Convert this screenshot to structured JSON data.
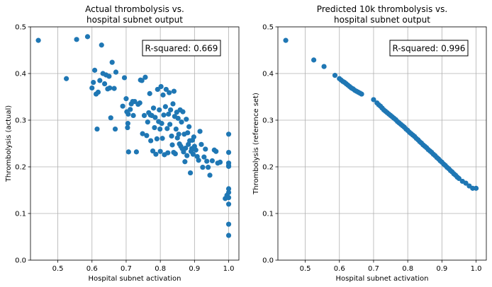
{
  "chart_data": [
    {
      "type": "scatter",
      "title_lines": [
        "Actual thrombolysis vs.",
        "hospital subnet output"
      ],
      "xlabel": "Hospital subnet activation",
      "ylabel": "Thrombolysis (actual)",
      "xlim": [
        0.42,
        1.03
      ],
      "ylim": [
        0.0,
        0.5
      ],
      "xticks": [
        "0.5",
        "0.6",
        "0.7",
        "0.8",
        "0.9",
        "1.0"
      ],
      "yticks": [
        "0.0",
        "0.1",
        "0.2",
        "0.3",
        "0.4",
        "0.5"
      ],
      "grid": true,
      "annotation": "R-squared: 0.669",
      "marker_color": "#1f77b4",
      "points": [
        [
          0.443,
          0.471
        ],
        [
          0.525,
          0.389
        ],
        [
          0.555,
          0.473
        ],
        [
          0.587,
          0.479
        ],
        [
          0.6,
          0.369
        ],
        [
          0.604,
          0.381
        ],
        [
          0.608,
          0.407
        ],
        [
          0.612,
          0.356
        ],
        [
          0.615,
          0.281
        ],
        [
          0.618,
          0.36
        ],
        [
          0.623,
          0.385
        ],
        [
          0.628,
          0.461
        ],
        [
          0.632,
          0.4
        ],
        [
          0.637,
          0.378
        ],
        [
          0.641,
          0.397
        ],
        [
          0.646,
          0.367
        ],
        [
          0.65,
          0.394
        ],
        [
          0.652,
          0.369
        ],
        [
          0.655,
          0.305
        ],
        [
          0.659,
          0.424
        ],
        [
          0.665,
          0.368
        ],
        [
          0.668,
          0.281
        ],
        [
          0.67,
          0.403
        ],
        [
          0.69,
          0.33
        ],
        [
          0.695,
          0.391
        ],
        [
          0.7,
          0.346
        ],
        [
          0.702,
          0.318
        ],
        [
          0.704,
          0.284
        ],
        [
          0.705,
          0.293
        ],
        [
          0.706,
          0.313
        ],
        [
          0.707,
          0.232
        ],
        [
          0.712,
          0.323
        ],
        [
          0.715,
          0.335
        ],
        [
          0.719,
          0.34
        ],
        [
          0.721,
          0.31
        ],
        [
          0.725,
          0.34
        ],
        [
          0.73,
          0.232
        ],
        [
          0.735,
          0.334
        ],
        [
          0.74,
          0.337
        ],
        [
          0.742,
          0.386
        ],
        [
          0.746,
          0.385
        ],
        [
          0.748,
          0.271
        ],
        [
          0.753,
          0.31
        ],
        [
          0.756,
          0.392
        ],
        [
          0.76,
          0.267
        ],
        [
          0.763,
          0.296
        ],
        [
          0.766,
          0.316
        ],
        [
          0.769,
          0.357
        ],
        [
          0.771,
          0.311
        ],
        [
          0.772,
          0.256
        ],
        [
          0.775,
          0.31
        ],
        [
          0.778,
          0.234
        ],
        [
          0.78,
          0.326
        ],
        [
          0.783,
          0.284
        ],
        [
          0.785,
          0.306
        ],
        [
          0.787,
          0.227
        ],
        [
          0.79,
          0.26
        ],
        [
          0.792,
          0.366
        ],
        [
          0.795,
          0.297
        ],
        [
          0.797,
          0.322
        ],
        [
          0.799,
          0.281
        ],
        [
          0.8,
          0.233
        ],
        [
          0.802,
          0.372
        ],
        [
          0.804,
          0.293
        ],
        [
          0.806,
          0.261
        ],
        [
          0.808,
          0.354
        ],
        [
          0.81,
          0.311
        ],
        [
          0.812,
          0.226
        ],
        [
          0.815,
          0.329
        ],
        [
          0.817,
          0.366
        ],
        [
          0.82,
          0.282
        ],
        [
          0.822,
          0.23
        ],
        [
          0.824,
          0.313
        ],
        [
          0.826,
          0.359
        ],
        [
          0.828,
          0.291
        ],
        [
          0.83,
          0.322
        ],
        [
          0.833,
          0.266
        ],
        [
          0.835,
          0.247
        ],
        [
          0.837,
          0.335
        ],
        [
          0.839,
          0.231
        ],
        [
          0.84,
          0.362
        ],
        [
          0.842,
          0.308
        ],
        [
          0.844,
          0.228
        ],
        [
          0.846,
          0.281
        ],
        [
          0.848,
          0.317
        ],
        [
          0.85,
          0.262
        ],
        [
          0.852,
          0.304
        ],
        [
          0.854,
          0.27
        ],
        [
          0.856,
          0.249
        ],
        [
          0.858,
          0.322
        ],
        [
          0.86,
          0.244
        ],
        [
          0.862,
          0.296
        ],
        [
          0.864,
          0.239
        ],
        [
          0.866,
          0.318
        ],
        [
          0.868,
          0.232
        ],
        [
          0.87,
          0.27
        ],
        [
          0.872,
          0.211
        ],
        [
          0.874,
          0.24
        ],
        [
          0.876,
          0.302
        ],
        [
          0.878,
          0.224
        ],
        [
          0.88,
          0.273
        ],
        [
          0.882,
          0.248
        ],
        [
          0.884,
          0.286
        ],
        [
          0.886,
          0.256
        ],
        [
          0.888,
          0.187
        ],
        [
          0.89,
          0.233
        ],
        [
          0.892,
          0.239
        ],
        [
          0.894,
          0.257
        ],
        [
          0.896,
          0.227
        ],
        [
          0.898,
          0.264
        ],
        [
          0.9,
          0.244
        ],
        [
          0.904,
          0.236
        ],
        [
          0.908,
          0.222
        ],
        [
          0.912,
          0.214
        ],
        [
          0.916,
          0.276
        ],
        [
          0.92,
          0.248
        ],
        [
          0.924,
          0.199
        ],
        [
          0.928,
          0.221
        ],
        [
          0.932,
          0.238
        ],
        [
          0.936,
          0.212
        ],
        [
          0.94,
          0.199
        ],
        [
          0.945,
          0.182
        ],
        [
          0.952,
          0.213
        ],
        [
          0.958,
          0.236
        ],
        [
          0.963,
          0.233
        ],
        [
          0.968,
          0.208
        ],
        [
          0.975,
          0.21
        ],
        [
          0.99,
          0.132
        ],
        [
          0.995,
          0.139
        ],
        [
          1.0,
          0.27
        ],
        [
          1.0,
          0.231
        ],
        [
          1.0,
          0.208
        ],
        [
          1.0,
          0.203
        ],
        [
          1.0,
          0.201
        ],
        [
          1.0,
          0.153
        ],
        [
          1.0,
          0.145
        ],
        [
          1.0,
          0.134
        ],
        [
          1.0,
          0.12
        ],
        [
          1.0,
          0.077
        ],
        [
          1.0,
          0.053
        ]
      ]
    },
    {
      "type": "scatter",
      "title_lines": [
        "Predicted 10k thrombolysis vs.",
        "hospital subnet output"
      ],
      "xlabel": "Hospital subnet activation",
      "ylabel": "Thrombolysis (reference set)",
      "xlim": [
        0.42,
        1.03
      ],
      "ylim": [
        0.0,
        0.5
      ],
      "xticks": [
        "0.5",
        "0.6",
        "0.7",
        "0.8",
        "0.9",
        "1.0"
      ],
      "yticks": [
        "0.0",
        "0.1",
        "0.2",
        "0.3",
        "0.4",
        "0.5"
      ],
      "grid": true,
      "annotation": "R-squared: 0.996",
      "marker_color": "#1f77b4",
      "points": [
        [
          0.443,
          0.471
        ],
        [
          0.525,
          0.429
        ],
        [
          0.555,
          0.415
        ],
        [
          0.587,
          0.396
        ],
        [
          0.6,
          0.389
        ],
        [
          0.605,
          0.386
        ],
        [
          0.61,
          0.383
        ],
        [
          0.615,
          0.381
        ],
        [
          0.62,
          0.378
        ],
        [
          0.625,
          0.375
        ],
        [
          0.63,
          0.372
        ],
        [
          0.635,
          0.369
        ],
        [
          0.64,
          0.367
        ],
        [
          0.645,
          0.364
        ],
        [
          0.65,
          0.362
        ],
        [
          0.655,
          0.36
        ],
        [
          0.66,
          0.358
        ],
        [
          0.665,
          0.356
        ],
        [
          0.7,
          0.344
        ],
        [
          0.71,
          0.337
        ],
        [
          0.715,
          0.333
        ],
        [
          0.72,
          0.33
        ],
        [
          0.725,
          0.326
        ],
        [
          0.73,
          0.322
        ],
        [
          0.735,
          0.319
        ],
        [
          0.74,
          0.316
        ],
        [
          0.745,
          0.313
        ],
        [
          0.75,
          0.31
        ],
        [
          0.755,
          0.307
        ],
        [
          0.76,
          0.304
        ],
        [
          0.765,
          0.301
        ],
        [
          0.77,
          0.297
        ],
        [
          0.775,
          0.294
        ],
        [
          0.78,
          0.291
        ],
        [
          0.785,
          0.288
        ],
        [
          0.79,
          0.285
        ],
        [
          0.795,
          0.281
        ],
        [
          0.8,
          0.278
        ],
        [
          0.805,
          0.274
        ],
        [
          0.81,
          0.271
        ],
        [
          0.815,
          0.268
        ],
        [
          0.82,
          0.265
        ],
        [
          0.825,
          0.261
        ],
        [
          0.83,
          0.258
        ],
        [
          0.835,
          0.254
        ],
        [
          0.84,
          0.251
        ],
        [
          0.845,
          0.247
        ],
        [
          0.85,
          0.244
        ],
        [
          0.855,
          0.241
        ],
        [
          0.86,
          0.237
        ],
        [
          0.865,
          0.234
        ],
        [
          0.87,
          0.231
        ],
        [
          0.875,
          0.227
        ],
        [
          0.88,
          0.224
        ],
        [
          0.885,
          0.22
        ],
        [
          0.89,
          0.217
        ],
        [
          0.895,
          0.213
        ],
        [
          0.9,
          0.21
        ],
        [
          0.905,
          0.206
        ],
        [
          0.91,
          0.203
        ],
        [
          0.915,
          0.199
        ],
        [
          0.92,
          0.196
        ],
        [
          0.925,
          0.192
        ],
        [
          0.93,
          0.189
        ],
        [
          0.935,
          0.185
        ],
        [
          0.94,
          0.182
        ],
        [
          0.945,
          0.178
        ],
        [
          0.95,
          0.175
        ],
        [
          0.96,
          0.169
        ],
        [
          0.97,
          0.165
        ],
        [
          0.98,
          0.159
        ],
        [
          0.99,
          0.154
        ],
        [
          1.0,
          0.154
        ]
      ]
    }
  ]
}
